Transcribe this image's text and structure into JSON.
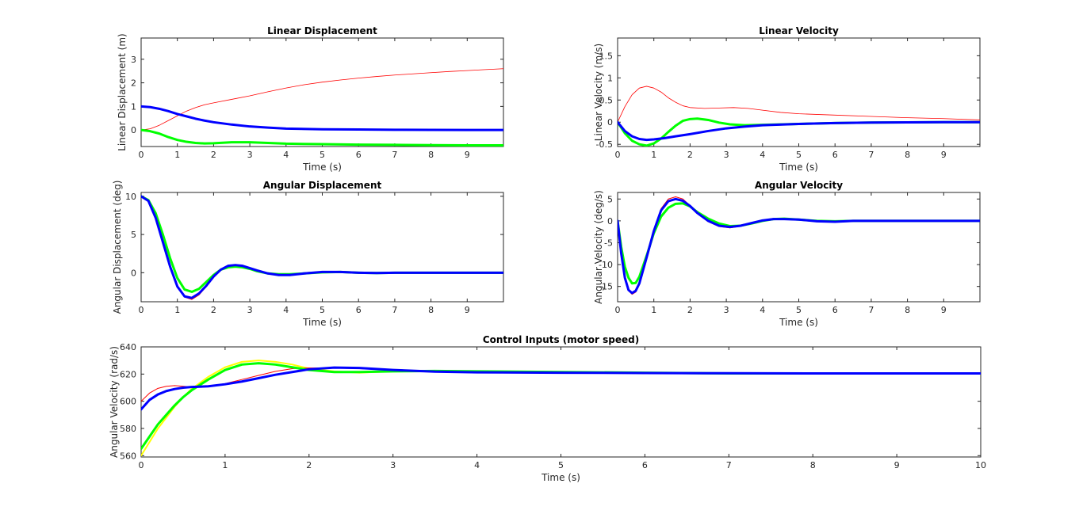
{
  "chart_data": [
    {
      "id": "linear-displacement",
      "type": "line",
      "title": "Linear Displacement",
      "xlabel": "Time (s)",
      "ylabel": "Linear Displacement (m)",
      "xlim": [
        0,
        10
      ],
      "ylim": [
        -0.7,
        3.9
      ],
      "xticks": [
        0,
        1,
        2,
        3,
        4,
        5,
        6,
        7,
        8,
        9
      ],
      "yticks": [
        0,
        1,
        2,
        3
      ],
      "grid": false,
      "series": [
        {
          "color": "#ff0000",
          "width": 0.8,
          "x": [
            0,
            0.25,
            0.5,
            0.75,
            1,
            1.25,
            1.5,
            1.75,
            2,
            2.5,
            3,
            3.5,
            4,
            4.5,
            5,
            5.5,
            6,
            6.5,
            7,
            7.5,
            8,
            8.5,
            9,
            9.5,
            10
          ],
          "y": [
            0,
            0.05,
            0.2,
            0.4,
            0.6,
            0.8,
            0.95,
            1.07,
            1.15,
            1.3,
            1.45,
            1.62,
            1.78,
            1.92,
            2.03,
            2.12,
            2.2,
            2.27,
            2.33,
            2.38,
            2.43,
            2.48,
            2.52,
            2.56,
            2.6
          ]
        },
        {
          "color": "#00ff00",
          "width": 3,
          "x": [
            0,
            0.25,
            0.5,
            0.75,
            1,
            1.25,
            1.5,
            1.75,
            2,
            2.5,
            3,
            3.5,
            4,
            5,
            6,
            7,
            8,
            9,
            10
          ],
          "y": [
            0,
            -0.05,
            -0.15,
            -0.3,
            -0.42,
            -0.5,
            -0.55,
            -0.57,
            -0.56,
            -0.52,
            -0.52,
            -0.55,
            -0.58,
            -0.6,
            -0.62,
            -0.63,
            -0.64,
            -0.65,
            -0.65
          ]
        },
        {
          "color": "#0000ff",
          "width": 3,
          "x": [
            0,
            0.25,
            0.5,
            0.75,
            1,
            1.25,
            1.5,
            1.75,
            2,
            2.5,
            3,
            3.5,
            4,
            5,
            6,
            7,
            8,
            9,
            10
          ],
          "y": [
            1,
            0.97,
            0.9,
            0.8,
            0.68,
            0.58,
            0.48,
            0.4,
            0.33,
            0.23,
            0.15,
            0.1,
            0.06,
            0.03,
            0.02,
            0.01,
            0.005,
            0.0,
            0.0
          ]
        }
      ]
    },
    {
      "id": "linear-velocity",
      "type": "line",
      "title": "Linear Velocity",
      "xlabel": "Time (s)",
      "ylabel": "Linear Velocity (m/s)",
      "xlim": [
        0,
        10
      ],
      "ylim": [
        -0.55,
        1.9
      ],
      "xticks": [
        0,
        1,
        2,
        3,
        4,
        5,
        6,
        7,
        8,
        9
      ],
      "yticks": [
        -0.5,
        0,
        0.5,
        1,
        1.5
      ],
      "grid": false,
      "series": [
        {
          "color": "#ff0000",
          "width": 0.8,
          "x": [
            0,
            0.2,
            0.4,
            0.6,
            0.8,
            1,
            1.2,
            1.4,
            1.6,
            1.8,
            2,
            2.4,
            2.8,
            3.2,
            3.6,
            4,
            4.5,
            5,
            6,
            7,
            8,
            9,
            10
          ],
          "y": [
            0,
            0.35,
            0.62,
            0.77,
            0.81,
            0.77,
            0.68,
            0.55,
            0.45,
            0.37,
            0.33,
            0.31,
            0.32,
            0.33,
            0.31,
            0.27,
            0.22,
            0.19,
            0.16,
            0.13,
            0.1,
            0.08,
            0.05
          ]
        },
        {
          "color": "#00ff00",
          "width": 3,
          "x": [
            0,
            0.2,
            0.4,
            0.6,
            0.8,
            1,
            1.2,
            1.4,
            1.6,
            1.8,
            2,
            2.2,
            2.5,
            2.8,
            3.1,
            3.5,
            4,
            5,
            6,
            7,
            8,
            9,
            10
          ],
          "y": [
            0,
            -0.25,
            -0.42,
            -0.5,
            -0.53,
            -0.48,
            -0.37,
            -0.22,
            -0.08,
            0.03,
            0.07,
            0.08,
            0.05,
            -0.01,
            -0.05,
            -0.07,
            -0.06,
            -0.04,
            -0.02,
            -0.01,
            -0.005,
            0,
            0
          ]
        },
        {
          "color": "#0000ff",
          "width": 3,
          "x": [
            0,
            0.2,
            0.4,
            0.6,
            0.8,
            1,
            1.3,
            1.6,
            2,
            2.5,
            3,
            3.5,
            4,
            5,
            6,
            7,
            8,
            9,
            10
          ],
          "y": [
            0,
            -0.2,
            -0.32,
            -0.38,
            -0.4,
            -0.39,
            -0.36,
            -0.32,
            -0.27,
            -0.2,
            -0.14,
            -0.1,
            -0.07,
            -0.04,
            -0.02,
            -0.01,
            -0.005,
            0,
            0
          ]
        }
      ]
    },
    {
      "id": "angular-displacement",
      "type": "line",
      "title": "Angular Displacement",
      "xlabel": "Time (s)",
      "ylabel": "Angular Displacement (deg)",
      "xlim": [
        0,
        10
      ],
      "ylim": [
        -3.8,
        10.5
      ],
      "xticks": [
        0,
        1,
        2,
        3,
        4,
        5,
        6,
        7,
        8,
        9
      ],
      "yticks": [
        0,
        5,
        10
      ],
      "grid": false,
      "series": [
        {
          "color": "#ff0000",
          "width": 1,
          "x": [
            0,
            0.2,
            0.4,
            0.6,
            0.8,
            1,
            1.2,
            1.4,
            1.6,
            1.8,
            2,
            2.2,
            2.4,
            2.6,
            2.8,
            3,
            3.2,
            3.5,
            3.8,
            4.1,
            4.5,
            5,
            5.5,
            6,
            6.5,
            7,
            8,
            9,
            10
          ],
          "y": [
            10,
            9.3,
            7,
            3.8,
            0.6,
            -1.9,
            -3.2,
            -3.5,
            -2.9,
            -1.8,
            -0.6,
            0.3,
            0.8,
            1,
            0.9,
            0.6,
            0.3,
            -0.1,
            -0.3,
            -0.3,
            -0.1,
            0.1,
            0.1,
            0,
            -0.05,
            0,
            0,
            0,
            0
          ]
        },
        {
          "color": "#00ff00",
          "width": 3,
          "x": [
            0,
            0.2,
            0.4,
            0.6,
            0.8,
            1,
            1.2,
            1.4,
            1.6,
            1.8,
            2,
            2.2,
            2.4,
            2.6,
            2.8,
            3,
            3.2,
            3.5,
            3.8,
            4.1,
            4.5,
            5,
            5.5,
            6,
            6.5,
            7,
            8,
            9,
            10
          ],
          "y": [
            10,
            9.5,
            7.8,
            5,
            1.9,
            -0.7,
            -2.2,
            -2.5,
            -2.1,
            -1.2,
            -0.3,
            0.4,
            0.7,
            0.8,
            0.7,
            0.5,
            0.2,
            -0.1,
            -0.2,
            -0.2,
            -0.1,
            0.05,
            0.1,
            0,
            -0.05,
            0,
            0,
            0,
            0
          ]
        },
        {
          "color": "#0000ff",
          "width": 3,
          "x": [
            0,
            0.2,
            0.4,
            0.6,
            0.8,
            1,
            1.2,
            1.4,
            1.6,
            1.8,
            2,
            2.2,
            2.4,
            2.6,
            2.8,
            3,
            3.2,
            3.5,
            3.8,
            4.1,
            4.5,
            5,
            5.5,
            6,
            6.5,
            7,
            8,
            9,
            10
          ],
          "y": [
            10,
            9.4,
            7.2,
            4,
            0.8,
            -1.8,
            -3.1,
            -3.3,
            -2.7,
            -1.7,
            -0.5,
            0.4,
            0.9,
            1,
            0.9,
            0.6,
            0.3,
            -0.1,
            -0.3,
            -0.3,
            -0.1,
            0.1,
            0.1,
            0,
            -0.05,
            0,
            0,
            0,
            0
          ]
        }
      ]
    },
    {
      "id": "angular-velocity",
      "type": "line",
      "title": "Angular Velocity",
      "xlabel": "Time (s)",
      "ylabel": "Angular Velocity (deg/s)",
      "xlim": [
        0,
        10
      ],
      "ylim": [
        -18.5,
        6.5
      ],
      "xticks": [
        0,
        1,
        2,
        3,
        4,
        5,
        6,
        7,
        8,
        9
      ],
      "yticks": [
        -15,
        -10,
        -5,
        0,
        5
      ],
      "grid": false,
      "series": [
        {
          "color": "#ff0000",
          "width": 1,
          "x": [
            0,
            0.1,
            0.2,
            0.3,
            0.4,
            0.5,
            0.6,
            0.8,
            1,
            1.2,
            1.4,
            1.6,
            1.8,
            2,
            2.2,
            2.5,
            2.8,
            3.1,
            3.4,
            3.7,
            4,
            4.3,
            4.6,
            5,
            5.5,
            6,
            6.5,
            7,
            8,
            9,
            10
          ],
          "y": [
            0,
            -8,
            -13.5,
            -16,
            -16.8,
            -16.3,
            -14.5,
            -8.5,
            -2,
            2.8,
            5,
            5.5,
            5,
            3.5,
            1.8,
            -0.2,
            -1.3,
            -1.6,
            -1.2,
            -0.5,
            0.1,
            0.5,
            0.5,
            0.3,
            -0.1,
            -0.2,
            0,
            0,
            0,
            0,
            0
          ]
        },
        {
          "color": "#00ff00",
          "width": 3,
          "x": [
            0,
            0.1,
            0.2,
            0.3,
            0.4,
            0.5,
            0.6,
            0.8,
            1,
            1.2,
            1.4,
            1.6,
            1.8,
            2,
            2.2,
            2.5,
            2.8,
            3.1,
            3.4,
            3.7,
            4,
            4.3,
            4.6,
            5,
            5.5,
            6,
            6.5,
            7,
            8,
            9,
            10
          ],
          "y": [
            0,
            -6,
            -10.5,
            -13,
            -14.3,
            -14.2,
            -12.8,
            -8,
            -2.8,
            1,
            3,
            3.9,
            4,
            3.3,
            2,
            0.5,
            -0.6,
            -1.2,
            -1.1,
            -0.6,
            0,
            0.4,
            0.5,
            0.3,
            0,
            -0.1,
            0,
            0,
            0,
            0,
            0
          ]
        },
        {
          "color": "#0000ff",
          "width": 3,
          "x": [
            0,
            0.1,
            0.2,
            0.3,
            0.4,
            0.5,
            0.6,
            0.8,
            1,
            1.2,
            1.4,
            1.6,
            1.8,
            2,
            2.2,
            2.5,
            2.8,
            3.1,
            3.4,
            3.7,
            4,
            4.3,
            4.6,
            5,
            5.5,
            6,
            6.5,
            7,
            8,
            9,
            10
          ],
          "y": [
            0,
            -7.5,
            -13,
            -15.8,
            -16.5,
            -16,
            -14.3,
            -8.4,
            -2.3,
            2.4,
            4.5,
            5,
            4.6,
            3.4,
            1.8,
            0,
            -1.1,
            -1.4,
            -1.1,
            -0.5,
            0.1,
            0.4,
            0.4,
            0.3,
            -0.1,
            -0.2,
            0,
            0,
            0,
            0,
            0
          ]
        }
      ]
    },
    {
      "id": "control-inputs",
      "type": "line",
      "title": "Control Inputs (motor speed)",
      "xlabel": "Time (s)",
      "ylabel": "Angular Velocity (rad/s)",
      "xlim": [
        0,
        10
      ],
      "ylim": [
        559,
        640
      ],
      "xticks": [
        0,
        1,
        2,
        3,
        4,
        5,
        6,
        7,
        8,
        9,
        10
      ],
      "yticks": [
        560,
        580,
        600,
        620,
        640
      ],
      "grid": false,
      "series": [
        {
          "color": "#ffff00",
          "width": 2,
          "x": [
            0,
            0.1,
            0.2,
            0.3,
            0.4,
            0.5,
            0.6,
            0.8,
            1,
            1.2,
            1.4,
            1.6,
            1.8,
            2,
            2.3,
            2.6,
            3,
            3.5,
            4,
            5,
            6,
            7,
            8,
            9,
            10
          ],
          "y": [
            560,
            570,
            580,
            588,
            596,
            603,
            609,
            618,
            625,
            629,
            630,
            629,
            627,
            624,
            622,
            621,
            622,
            622.5,
            622,
            621.5,
            621,
            620.5,
            620.5,
            620.5,
            620.5
          ]
        },
        {
          "color": "#ff0000",
          "width": 1,
          "x": [
            0,
            0.1,
            0.2,
            0.3,
            0.4,
            0.5,
            0.6,
            0.8,
            1,
            1.2,
            1.4,
            1.6,
            1.8,
            2,
            2.3,
            2.6,
            3,
            3.5,
            4,
            5,
            6,
            7,
            8,
            9,
            10
          ],
          "y": [
            600,
            606,
            609.5,
            611,
            611.5,
            611,
            610.5,
            611,
            613,
            616,
            619,
            622,
            624,
            624.5,
            624.5,
            624,
            623,
            622,
            621.5,
            621,
            620.8,
            620.6,
            620.5,
            620.5,
            620.5
          ]
        },
        {
          "color": "#00ff00",
          "width": 3,
          "x": [
            0,
            0.1,
            0.2,
            0.3,
            0.4,
            0.5,
            0.6,
            0.8,
            1,
            1.2,
            1.4,
            1.6,
            1.8,
            2,
            2.3,
            2.6,
            3,
            3.5,
            4,
            5,
            6,
            7,
            8,
            9,
            10
          ],
          "y": [
            565,
            574,
            583,
            590,
            597,
            603,
            608,
            616,
            623,
            627,
            628,
            627,
            625,
            623,
            621.5,
            621.5,
            622,
            622.3,
            622,
            621.5,
            621,
            620.5,
            620.5,
            620.5,
            620.5
          ]
        },
        {
          "color": "#0000ff",
          "width": 3,
          "x": [
            0,
            0.1,
            0.2,
            0.3,
            0.4,
            0.5,
            0.6,
            0.8,
            1,
            1.2,
            1.4,
            1.6,
            1.8,
            2,
            2.3,
            2.6,
            3,
            3.5,
            4,
            5,
            6,
            7,
            8,
            9,
            10
          ],
          "y": [
            594,
            601,
            605,
            607.5,
            609,
            610,
            610.5,
            611,
            612.5,
            614.5,
            617,
            619.5,
            621.5,
            623.5,
            624.8,
            624.5,
            623,
            621.8,
            621.3,
            621,
            620.8,
            620.6,
            620.5,
            620.5,
            620.5
          ]
        }
      ]
    }
  ]
}
